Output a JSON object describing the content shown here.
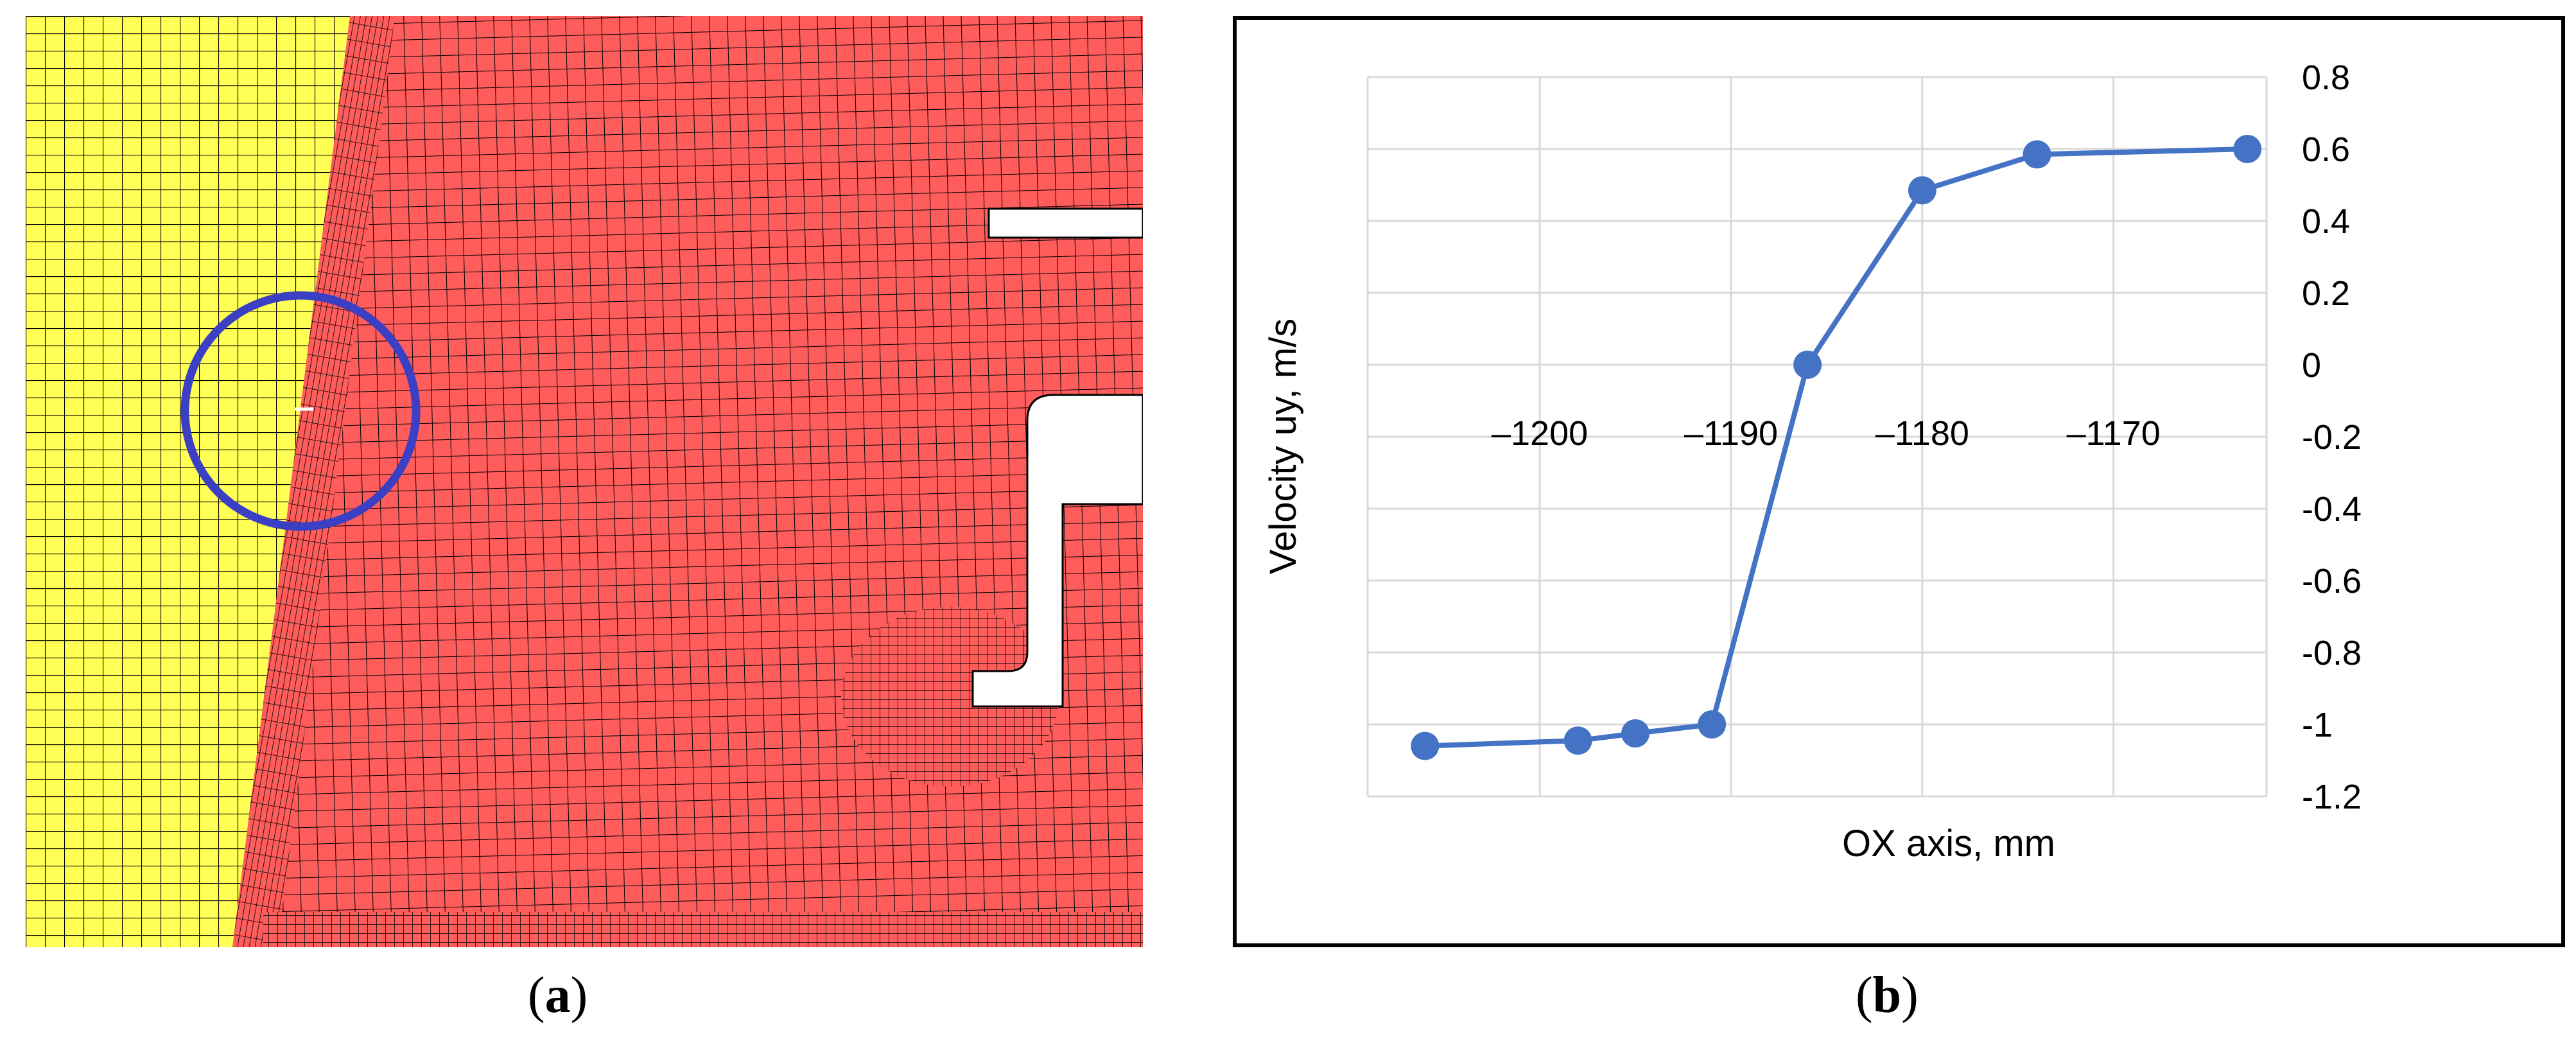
{
  "captions": {
    "a_open": "(",
    "a_letter": "a",
    "a_close": ")",
    "b_open": "(",
    "b_letter": "b",
    "b_close": ")"
  },
  "mesh": {
    "colors": {
      "left_region": "#ffff55",
      "right_region": "#ff5c5c",
      "lines": "#000000",
      "highlight_circle": "#3b3fc4",
      "void": "#ffffff"
    }
  },
  "chart_data": {
    "type": "line",
    "x": [
      -1206,
      -1198,
      -1195,
      -1191,
      -1186,
      -1180,
      -1174,
      -1163
    ],
    "y": [
      -1.06,
      -1.045,
      -1.025,
      -1.0,
      0.0,
      0.485,
      0.585,
      0.6
    ],
    "xlim": [
      -1209,
      -1162
    ],
    "ylim": [
      -1.2,
      0.8
    ],
    "xticks": [
      -1200,
      -1190,
      -1180,
      -1170
    ],
    "xtick_labels": [
      "–1200",
      "–1190",
      "–1180",
      "–1170"
    ],
    "yticks": [
      -1.2,
      -1.0,
      -0.8,
      -0.6,
      -0.4,
      -0.2,
      0.0,
      0.2,
      0.4,
      0.6,
      0.8
    ],
    "ytick_labels": [
      "-1.2",
      "-1",
      "-0.8",
      "-0.6",
      "-0.4",
      "-0.2",
      "0",
      "0.2",
      "0.4",
      "0.6",
      "0.8"
    ],
    "xlabel": "OX axis, mm",
    "ylabel": "Velocity uy, m/s",
    "grid": true,
    "y_axis_side": "right",
    "x_tick_labels_position": "along y=0",
    "line_color": "#4472c4",
    "marker_color": "#4472c4"
  }
}
